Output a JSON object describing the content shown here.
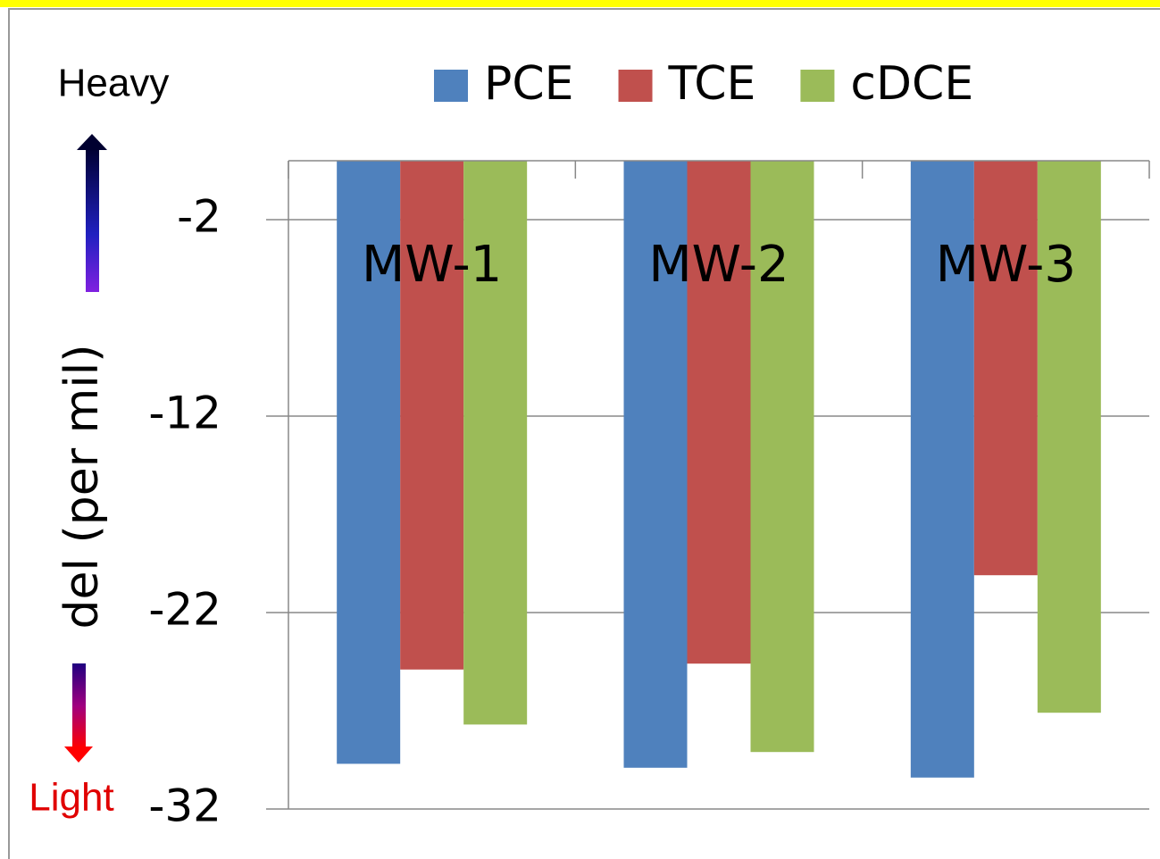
{
  "chart_data": {
    "type": "bar",
    "categories": [
      "MW-1",
      "MW-2",
      "MW-3"
    ],
    "series": [
      {
        "name": "PCE",
        "color": "#4f81bd",
        "values": [
          -29.7,
          -29.9,
          -30.4
        ]
      },
      {
        "name": "TCE",
        "color": "#c0504d",
        "values": [
          -24.9,
          -24.6,
          -20.1
        ]
      },
      {
        "name": "cDCE",
        "color": "#9bbb59",
        "values": [
          -27.7,
          -29.1,
          -27.1
        ]
      }
    ],
    "y_label": "del (per mil)",
    "annotations": [
      "Heavy",
      "Light"
    ],
    "ylim": [
      -32,
      1
    ],
    "yticks": [
      -32,
      -22,
      -12,
      -2
    ],
    "grid": true
  }
}
